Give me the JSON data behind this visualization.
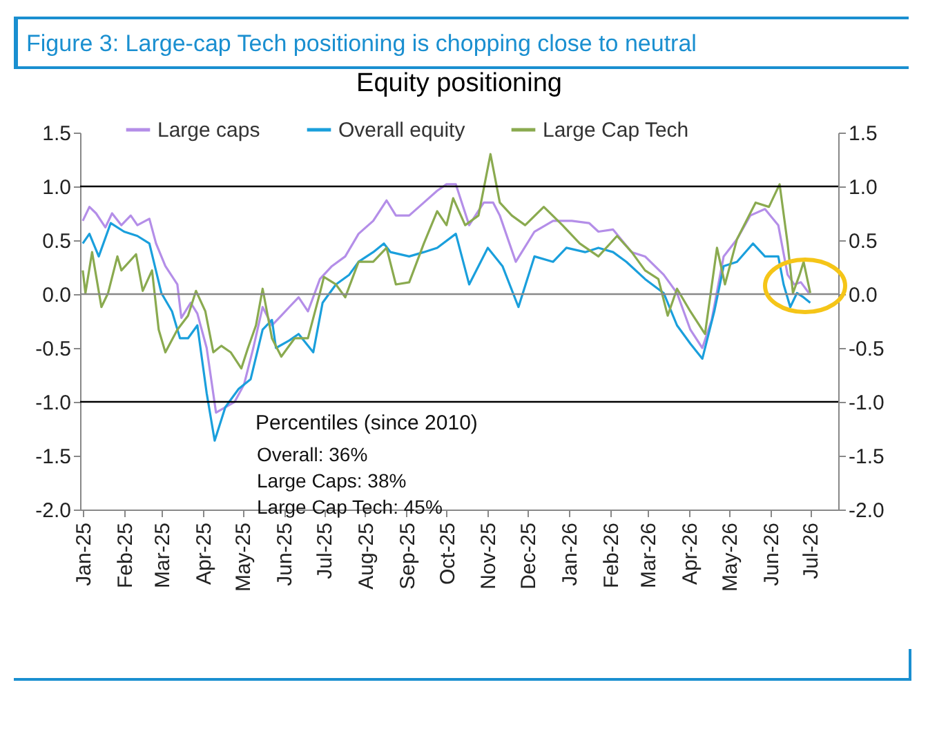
{
  "chart_data": {
    "type": "line",
    "title": "Figure 3: Large-cap Tech positioning is chopping close to neutral",
    "subtitle": "Equity positioning",
    "annotations": [
      "Percentiles (since 2010)",
      "Overall: 36%",
      "Large Caps: 38%",
      "Large Cap Tech: 45%"
    ],
    "xlim": [
      "2024-12-30",
      "2026-07-22"
    ],
    "xticks": [
      {
        "value": "2025-01-01",
        "label": "Jan-25"
      },
      {
        "value": "2025-02-01",
        "label": "Feb-25"
      },
      {
        "value": "2025-03-01",
        "label": "Mar-25"
      },
      {
        "value": "2025-04-01",
        "label": "Apr-25"
      },
      {
        "value": "2025-05-01",
        "label": "May-25"
      },
      {
        "value": "2025-06-01",
        "label": "Jun-25"
      },
      {
        "value": "2025-07-01",
        "label": "Jul-25"
      },
      {
        "value": "2025-08-01",
        "label": "Aug-25"
      },
      {
        "value": "2025-09-01",
        "label": "Sep-25"
      },
      {
        "value": "2025-10-01",
        "label": "Oct-25"
      },
      {
        "value": "2025-11-01",
        "label": "Nov-25"
      },
      {
        "value": "2025-12-01",
        "label": "Dec-25"
      },
      {
        "value": "2026-01-01",
        "label": "Jan-26"
      },
      {
        "value": "2026-02-01",
        "label": "Feb-26"
      },
      {
        "value": "2026-03-01",
        "label": "Mar-26"
      },
      {
        "value": "2026-04-01",
        "label": "Apr-26"
      },
      {
        "value": "2026-05-01",
        "label": "May-26"
      },
      {
        "value": "2026-06-01",
        "label": "Jun-26"
      },
      {
        "value": "2026-07-01",
        "label": "Jul-26"
      }
    ],
    "ylim": [
      -2,
      1.5
    ],
    "yticks": [
      1.5,
      {
        "value": 1,
        "label": "1.0"
      },
      0.5,
      {
        "value": 0,
        "label": "0.0"
      },
      -0.5,
      {
        "value": -1,
        "label": "-1.0"
      },
      -1.5,
      {
        "value": -2,
        "label": "-2.0"
      }
    ],
    "y2lim": [
      -2,
      1.5
    ],
    "y2ticks": [
      1.5,
      {
        "value": 1,
        "label": "1.0"
      },
      0.5,
      {
        "value": 0,
        "label": "0.0"
      },
      -0.5,
      {
        "value": -1,
        "label": "-1.0"
      },
      -1.5,
      {
        "value": -2,
        "label": "-2.0"
      }
    ],
    "ref_lines": [
      {
        "axis": "y",
        "value": 1,
        "color": "#000000"
      },
      {
        "axis": "y",
        "value": 0,
        "color": "#888888"
      },
      {
        "axis": "y",
        "value": -1,
        "color": "#000000"
      }
    ],
    "legend": "top",
    "grid": false,
    "marker": "none",
    "line_style": "solid",
    "series": [
      {
        "name": "Large caps",
        "color": "#b48ee8",
        "x": [
          "2025-01-01",
          "2025-01-06",
          "2025-01-11",
          "2025-01-18",
          "2025-01-23",
          "2025-01-30",
          "2025-02-06",
          "2025-02-11",
          "2025-02-20",
          "2025-02-25",
          "2025-03-04",
          "2025-03-13",
          "2025-03-16",
          "2025-03-23",
          "2025-03-28",
          "2025-04-04",
          "2025-04-11",
          "2025-04-18",
          "2025-04-25",
          "2025-05-02",
          "2025-05-09",
          "2025-05-16",
          "2025-05-23",
          "2025-05-30",
          "2025-06-05",
          "2025-06-12",
          "2025-06-19",
          "2025-06-28",
          "2025-07-07",
          "2025-07-17",
          "2025-07-27",
          "2025-08-07",
          "2025-08-17",
          "2025-08-24",
          "2025-09-03",
          "2025-09-14",
          "2025-09-24",
          "2025-10-01",
          "2025-10-08",
          "2025-10-18",
          "2025-10-29",
          "2025-11-05",
          "2025-11-10",
          "2025-11-22",
          "2025-12-06",
          "2025-12-20",
          "2026-01-03",
          "2026-01-16",
          "2026-01-23",
          "2026-02-03",
          "2026-02-17",
          "2026-02-27",
          "2026-03-13",
          "2026-03-23",
          "2026-04-02",
          "2026-04-11",
          "2026-04-18",
          "2026-04-27",
          "2026-05-07",
          "2026-05-17",
          "2026-05-28",
          "2026-06-07",
          "2026-06-14",
          "2026-06-19",
          "2026-06-24",
          "2026-06-30"
        ],
        "values": [
          0.68,
          0.81,
          0.75,
          0.62,
          0.75,
          0.64,
          0.73,
          0.64,
          0.7,
          0.47,
          0.26,
          0.09,
          -0.22,
          -0.08,
          -0.18,
          -0.5,
          -1.1,
          -1.05,
          -1.0,
          -0.84,
          -0.5,
          -0.12,
          -0.29,
          -0.2,
          -0.12,
          -0.03,
          -0.16,
          0.14,
          0.26,
          0.35,
          0.56,
          0.68,
          0.87,
          0.73,
          0.73,
          0.85,
          0.96,
          1.02,
          1.02,
          0.64,
          0.85,
          0.85,
          0.73,
          0.3,
          0.58,
          0.68,
          0.68,
          0.66,
          0.58,
          0.6,
          0.39,
          0.35,
          0.18,
          0.01,
          -0.33,
          -0.5,
          -0.24,
          0.35,
          0.51,
          0.73,
          0.79,
          0.64,
          0.18,
          0.09,
          0.11,
          0.01
        ]
      },
      {
        "name": "Overall equity",
        "color": "#1a9fdc",
        "x": [
          "2025-01-01",
          "2025-01-06",
          "2025-01-13",
          "2025-01-22",
          "2025-02-01",
          "2025-02-11",
          "2025-02-20",
          "2025-03-01",
          "2025-03-09",
          "2025-03-15",
          "2025-03-21",
          "2025-03-28",
          "2025-04-04",
          "2025-04-10",
          "2025-04-18",
          "2025-04-28",
          "2025-05-07",
          "2025-05-16",
          "2025-05-23",
          "2025-05-26",
          "2025-06-05",
          "2025-06-12",
          "2025-06-23",
          "2025-06-30",
          "2025-07-10",
          "2025-07-20",
          "2025-07-27",
          "2025-08-07",
          "2025-08-15",
          "2025-08-20",
          "2025-09-03",
          "2025-09-14",
          "2025-09-24",
          "2025-10-08",
          "2025-10-18",
          "2025-11-01",
          "2025-11-12",
          "2025-11-24",
          "2025-12-06",
          "2025-12-20",
          "2025-12-30",
          "2026-01-13",
          "2026-01-23",
          "2026-02-03",
          "2026-02-13",
          "2026-02-27",
          "2026-03-13",
          "2026-03-23",
          "2026-04-02",
          "2026-04-11",
          "2026-04-20",
          "2026-04-27",
          "2026-05-07",
          "2026-05-19",
          "2026-05-28",
          "2026-06-07",
          "2026-06-11",
          "2026-06-16",
          "2026-06-21",
          "2026-06-26",
          "2026-07-01"
        ],
        "values": [
          0.47,
          0.56,
          0.35,
          0.66,
          0.58,
          0.54,
          0.47,
          0.01,
          -0.16,
          -0.41,
          -0.41,
          -0.29,
          -0.92,
          -1.36,
          -1.05,
          -0.88,
          -0.79,
          -0.33,
          -0.24,
          -0.5,
          -0.43,
          -0.37,
          -0.54,
          -0.08,
          0.09,
          0.18,
          0.3,
          0.39,
          0.47,
          0.39,
          0.35,
          0.39,
          0.43,
          0.56,
          0.09,
          0.43,
          0.26,
          -0.12,
          0.35,
          0.3,
          0.43,
          0.39,
          0.43,
          0.39,
          0.3,
          0.14,
          0.01,
          -0.29,
          -0.46,
          -0.6,
          -0.16,
          0.26,
          0.3,
          0.47,
          0.35,
          0.35,
          0.09,
          -0.12,
          0.01,
          -0.03,
          -0.08
        ]
      },
      {
        "name": "Large Cap Tech",
        "color": "#8aaa4f",
        "x": [
          "2025-01-01",
          "2025-01-03",
          "2025-01-08",
          "2025-01-15",
          "2025-01-20",
          "2025-01-27",
          "2025-01-30",
          "2025-02-10",
          "2025-02-15",
          "2025-02-22",
          "2025-02-27",
          "2025-03-04",
          "2025-03-13",
          "2025-03-21",
          "2025-03-27",
          "2025-04-03",
          "2025-04-09",
          "2025-04-15",
          "2025-04-22",
          "2025-04-30",
          "2025-05-05",
          "2025-05-11",
          "2025-05-16",
          "2025-05-23",
          "2025-05-30",
          "2025-06-09",
          "2025-06-19",
          "2025-06-28",
          "2025-07-01",
          "2025-07-10",
          "2025-07-17",
          "2025-07-27",
          "2025-08-07",
          "2025-08-17",
          "2025-08-24",
          "2025-09-03",
          "2025-09-14",
          "2025-09-24",
          "2025-10-01",
          "2025-10-06",
          "2025-10-15",
          "2025-10-25",
          "2025-11-03",
          "2025-11-10",
          "2025-11-19",
          "2025-11-29",
          "2025-12-13",
          "2025-12-27",
          "2026-01-09",
          "2026-01-23",
          "2026-02-06",
          "2026-02-17",
          "2026-02-27",
          "2026-03-09",
          "2026-03-16",
          "2026-03-23",
          "2026-04-02",
          "2026-04-13",
          "2026-04-22",
          "2026-04-28",
          "2026-05-07",
          "2026-05-21",
          "2026-05-31",
          "2026-06-08",
          "2026-06-14",
          "2026-06-18",
          "2026-06-23",
          "2026-06-26",
          "2026-07-01"
        ],
        "values": [
          0.22,
          0.01,
          0.39,
          -0.12,
          0.01,
          0.35,
          0.22,
          0.37,
          0.03,
          0.22,
          -0.33,
          -0.54,
          -0.33,
          -0.2,
          0.03,
          -0.16,
          -0.54,
          -0.48,
          -0.54,
          -0.69,
          -0.5,
          -0.29,
          0.05,
          -0.41,
          -0.58,
          -0.41,
          -0.41,
          0.01,
          0.16,
          0.09,
          -0.03,
          0.3,
          0.3,
          0.43,
          0.09,
          0.11,
          0.47,
          0.77,
          0.64,
          0.89,
          0.64,
          0.73,
          1.3,
          0.85,
          0.73,
          0.64,
          0.81,
          0.64,
          0.47,
          0.35,
          0.54,
          0.39,
          0.22,
          0.14,
          -0.2,
          0.05,
          -0.16,
          -0.37,
          0.43,
          0.09,
          0.51,
          0.85,
          0.81,
          1.02,
          0.47,
          0.01,
          0.18,
          0.3,
          0.01
        ]
      }
    ]
  }
}
